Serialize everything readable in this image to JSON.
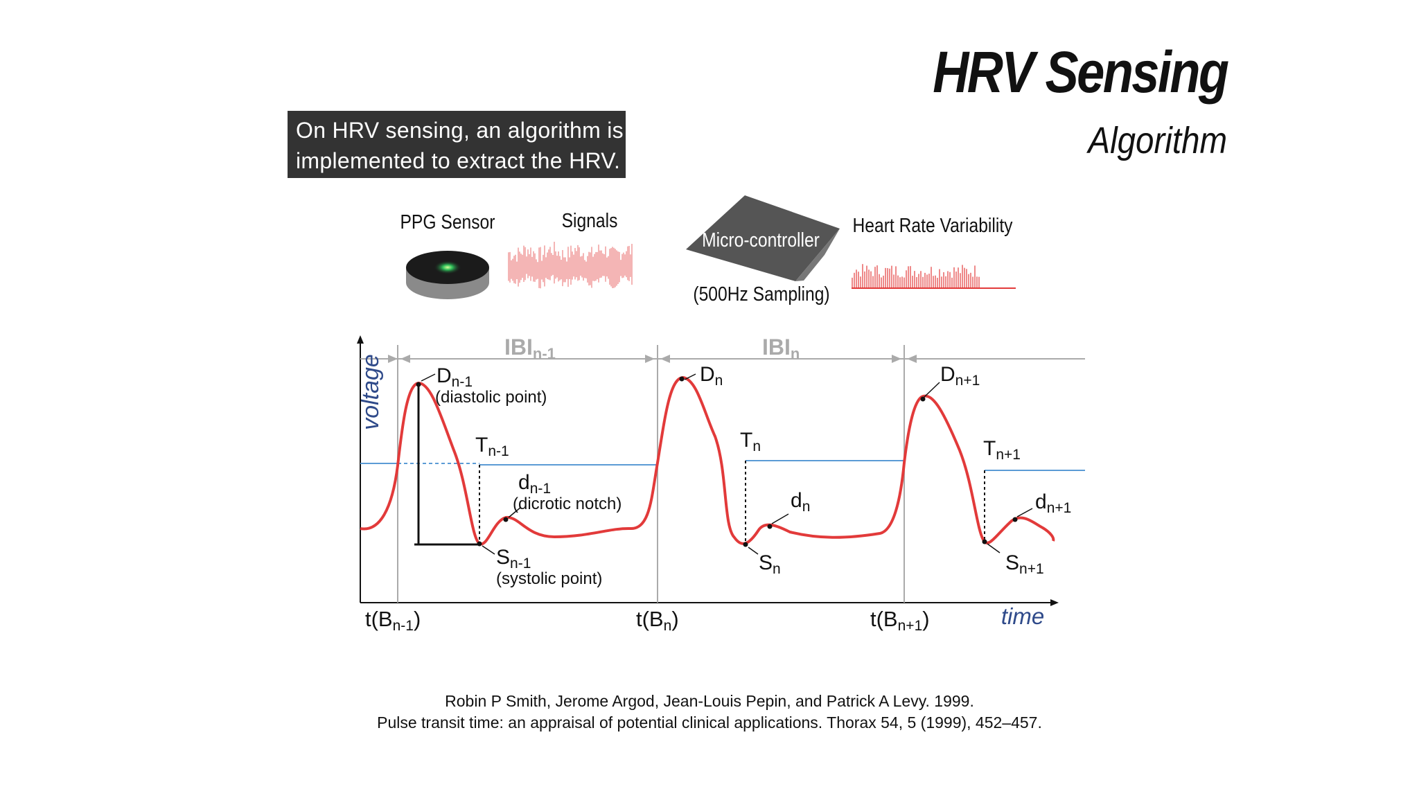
{
  "slide": {
    "title": "HRV Sensing",
    "subtitle": "Algorithm",
    "callout_line1": "On HRV sensing, an algorithm is",
    "callout_line2": "implemented to extract the HRV."
  },
  "pipeline": {
    "ppg_label": "PPG Sensor",
    "signals_label": "Signals",
    "mcu_label": "Micro-controller",
    "mcu_sub": "(500Hz Sampling)",
    "hrv_label": "Heart Rate Variability"
  },
  "waveform": {
    "y_axis": "voltage",
    "x_axis": "time",
    "ibi_prev": "IBI",
    "ibi_prev_sub": "n-1",
    "ibi_n": "IBI",
    "ibi_n_sub": "n",
    "d_prev": "D",
    "d_prev_sub": "n-1",
    "diastolic": "(diastolic point)",
    "t_prev": "T",
    "t_prev_sub": "n-1",
    "dn_prev": "d",
    "dn_prev_sub": "n-1",
    "dicrotic": "(dicrotic notch)",
    "s_prev": "S",
    "s_prev_sub": "n-1",
    "systolic": "(systolic point)",
    "d_n": "D",
    "d_n_sub": "n",
    "t_n": "T",
    "t_n_sub": "n",
    "dn_n": "d",
    "dn_n_sub": "n",
    "s_n": "S",
    "s_n_sub": "n",
    "d_next": "D",
    "d_next_sub": "n+1",
    "t_next": "T",
    "t_next_sub": "n+1",
    "dn_next": "d",
    "dn_next_sub": "n+1",
    "s_next": "S",
    "s_next_sub": "n+1",
    "tb_prev": "t(B",
    "tb_prev_sub": "n-1",
    "tb_n": "t(B",
    "tb_n_sub": "n",
    "tb_next": "t(B",
    "tb_next_sub": "n+1",
    "close_paren": ")"
  },
  "reference": {
    "line1": "Robin P Smith, Jerome Argod, Jean-Louis Pepin, and Patrick A Levy. 1999.",
    "line2": "Pulse transit time: an appraisal of potential clinical applications. Thorax 54, 5 (1999), 452–457."
  },
  "colors": {
    "waveform": "#e23a3a",
    "threshold": "#5b9bd5",
    "axis_text": "#2f4a8a",
    "grid": "#aaaaaa"
  }
}
